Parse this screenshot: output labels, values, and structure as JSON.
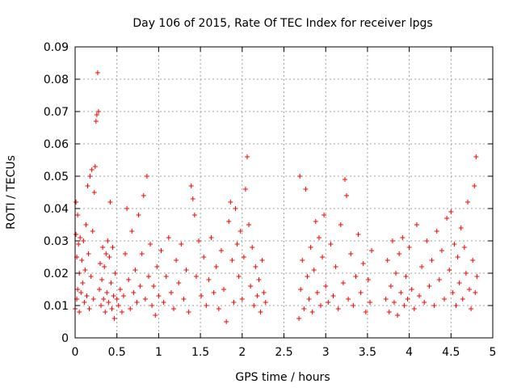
{
  "chart_data": {
    "type": "scatter",
    "title": "Day 106 of 2015, Rate Of TEC Index for receiver lpgs",
    "xlabel": "GPS time / hours",
    "ylabel": "ROTI / TECUs",
    "xlim": [
      0,
      5
    ],
    "ylim": [
      0,
      0.09
    ],
    "x_ticks": [
      "0",
      "0.5",
      "1",
      "1.5",
      "2",
      "2.5",
      "3",
      "3.5",
      "4",
      "4.5",
      "5"
    ],
    "y_ticks": [
      "0",
      "0.01",
      "0.02",
      "0.03",
      "0.04",
      "0.05",
      "0.06",
      "0.07",
      "0.08",
      "0.09"
    ],
    "grid": true,
    "marker": "plus",
    "color": "#ff0000",
    "series": [
      {
        "name": "ROTI",
        "points": [
          [
            0.0,
            0.009
          ],
          [
            0.01,
            0.032
          ],
          [
            0.01,
            0.042
          ],
          [
            0.02,
            0.012
          ],
          [
            0.02,
            0.025
          ],
          [
            0.03,
            0.038
          ],
          [
            0.03,
            0.015
          ],
          [
            0.04,
            0.029
          ],
          [
            0.05,
            0.008
          ],
          [
            0.05,
            0.02
          ],
          [
            0.06,
            0.031
          ],
          [
            0.07,
            0.014
          ],
          [
            0.08,
            0.024
          ],
          [
            0.09,
            0.017
          ],
          [
            0.1,
            0.03
          ],
          [
            0.11,
            0.011
          ],
          [
            0.12,
            0.021
          ],
          [
            0.13,
            0.035
          ],
          [
            0.14,
            0.013
          ],
          [
            0.15,
            0.047
          ],
          [
            0.16,
            0.026
          ],
          [
            0.17,
            0.009
          ],
          [
            0.18,
            0.05
          ],
          [
            0.19,
            0.019
          ],
          [
            0.2,
            0.052
          ],
          [
            0.21,
            0.033
          ],
          [
            0.22,
            0.012
          ],
          [
            0.23,
            0.045
          ],
          [
            0.24,
            0.053
          ],
          [
            0.25,
            0.067
          ],
          [
            0.26,
            0.069
          ],
          [
            0.27,
            0.082
          ],
          [
            0.28,
            0.07
          ],
          [
            0.29,
            0.015
          ],
          [
            0.3,
            0.023
          ],
          [
            0.31,
            0.01
          ],
          [
            0.32,
            0.018
          ],
          [
            0.33,
            0.028
          ],
          [
            0.34,
            0.012
          ],
          [
            0.35,
            0.022
          ],
          [
            0.36,
            0.008
          ],
          [
            0.37,
            0.026
          ],
          [
            0.38,
            0.014
          ],
          [
            0.39,
            0.03
          ],
          [
            0.4,
            0.011
          ],
          [
            0.41,
            0.025
          ],
          [
            0.42,
            0.042
          ],
          [
            0.43,
            0.017
          ],
          [
            0.44,
            0.009
          ],
          [
            0.45,
            0.028
          ],
          [
            0.46,
            0.013
          ],
          [
            0.47,
            0.006
          ],
          [
            0.48,
            0.02
          ],
          [
            0.5,
            0.012
          ],
          [
            0.52,
            0.01
          ],
          [
            0.54,
            0.015
          ],
          [
            0.56,
            0.008
          ],
          [
            0.58,
            0.013
          ],
          [
            0.6,
            0.026
          ],
          [
            0.62,
            0.04
          ],
          [
            0.64,
            0.018
          ],
          [
            0.66,
            0.009
          ],
          [
            0.68,
            0.033
          ],
          [
            0.7,
            0.014
          ],
          [
            0.72,
            0.021
          ],
          [
            0.74,
            0.011
          ],
          [
            0.76,
            0.038
          ],
          [
            0.78,
            0.016
          ],
          [
            0.8,
            0.026
          ],
          [
            0.82,
            0.044
          ],
          [
            0.84,
            0.012
          ],
          [
            0.86,
            0.05
          ],
          [
            0.88,
            0.019
          ],
          [
            0.9,
            0.029
          ],
          [
            0.92,
            0.01
          ],
          [
            0.94,
            0.016
          ],
          [
            0.96,
            0.007
          ],
          [
            0.98,
            0.022
          ],
          [
            1.0,
            0.013
          ],
          [
            1.03,
            0.027
          ],
          [
            1.06,
            0.011
          ],
          [
            1.09,
            0.019
          ],
          [
            1.12,
            0.031
          ],
          [
            1.15,
            0.014
          ],
          [
            1.18,
            0.009
          ],
          [
            1.21,
            0.024
          ],
          [
            1.24,
            0.017
          ],
          [
            1.27,
            0.029
          ],
          [
            1.3,
            0.012
          ],
          [
            1.33,
            0.021
          ],
          [
            1.36,
            0.008
          ],
          [
            1.39,
            0.047
          ],
          [
            1.41,
            0.043
          ],
          [
            1.43,
            0.038
          ],
          [
            1.45,
            0.019
          ],
          [
            1.48,
            0.03
          ],
          [
            1.51,
            0.013
          ],
          [
            1.54,
            0.025
          ],
          [
            1.57,
            0.01
          ],
          [
            1.6,
            0.018
          ],
          [
            1.63,
            0.031
          ],
          [
            1.66,
            0.014
          ],
          [
            1.69,
            0.022
          ],
          [
            1.72,
            0.009
          ],
          [
            1.75,
            0.027
          ],
          [
            1.78,
            0.015
          ],
          [
            1.81,
            0.005
          ],
          [
            1.84,
            0.036
          ],
          [
            1.86,
            0.042
          ],
          [
            1.88,
            0.024
          ],
          [
            1.9,
            0.011
          ],
          [
            1.92,
            0.04
          ],
          [
            1.94,
            0.029
          ],
          [
            1.96,
            0.019
          ],
          [
            1.98,
            0.033
          ],
          [
            2.0,
            0.012
          ],
          [
            2.02,
            0.025
          ],
          [
            2.04,
            0.046
          ],
          [
            2.06,
            0.056
          ],
          [
            2.08,
            0.035
          ],
          [
            2.1,
            0.016
          ],
          [
            2.12,
            0.028
          ],
          [
            2.14,
            0.01
          ],
          [
            2.16,
            0.022
          ],
          [
            2.18,
            0.013
          ],
          [
            2.2,
            0.018
          ],
          [
            2.22,
            0.008
          ],
          [
            2.24,
            0.024
          ],
          [
            2.26,
            0.014
          ],
          [
            2.28,
            0.011
          ],
          [
            2.68,
            0.006
          ],
          [
            2.69,
            0.05
          ],
          [
            2.7,
            0.015
          ],
          [
            2.72,
            0.024
          ],
          [
            2.74,
            0.009
          ],
          [
            2.76,
            0.046
          ],
          [
            2.78,
            0.019
          ],
          [
            2.8,
            0.012
          ],
          [
            2.82,
            0.028
          ],
          [
            2.84,
            0.008
          ],
          [
            2.86,
            0.021
          ],
          [
            2.88,
            0.036
          ],
          [
            2.9,
            0.014
          ],
          [
            2.92,
            0.031
          ],
          [
            2.94,
            0.01
          ],
          [
            2.96,
            0.025
          ],
          [
            2.98,
            0.038
          ],
          [
            3.0,
            0.016
          ],
          [
            3.03,
            0.011
          ],
          [
            3.06,
            0.029
          ],
          [
            3.09,
            0.013
          ],
          [
            3.12,
            0.022
          ],
          [
            3.15,
            0.009
          ],
          [
            3.18,
            0.035
          ],
          [
            3.21,
            0.017
          ],
          [
            3.23,
            0.049
          ],
          [
            3.25,
            0.044
          ],
          [
            3.27,
            0.012
          ],
          [
            3.3,
            0.026
          ],
          [
            3.33,
            0.01
          ],
          [
            3.36,
            0.019
          ],
          [
            3.39,
            0.032
          ],
          [
            3.42,
            0.014
          ],
          [
            3.45,
            0.023
          ],
          [
            3.48,
            0.008
          ],
          [
            3.51,
            0.018
          ],
          [
            3.53,
            0.011
          ],
          [
            3.55,
            0.027
          ],
          [
            3.72,
            0.012
          ],
          [
            3.74,
            0.024
          ],
          [
            3.76,
            0.008
          ],
          [
            3.78,
            0.016
          ],
          [
            3.8,
            0.03
          ],
          [
            3.82,
            0.011
          ],
          [
            3.84,
            0.02
          ],
          [
            3.86,
            0.007
          ],
          [
            3.88,
            0.026
          ],
          [
            3.9,
            0.014
          ],
          [
            3.92,
            0.031
          ],
          [
            3.94,
            0.01
          ],
          [
            3.96,
            0.019
          ],
          [
            3.98,
            0.012
          ],
          [
            4.0,
            0.028
          ],
          [
            4.03,
            0.015
          ],
          [
            4.06,
            0.009
          ],
          [
            4.09,
            0.035
          ],
          [
            4.12,
            0.013
          ],
          [
            4.15,
            0.022
          ],
          [
            4.18,
            0.011
          ],
          [
            4.21,
            0.03
          ],
          [
            4.24,
            0.016
          ],
          [
            4.27,
            0.024
          ],
          [
            4.3,
            0.01
          ],
          [
            4.33,
            0.033
          ],
          [
            4.36,
            0.018
          ],
          [
            4.39,
            0.027
          ],
          [
            4.42,
            0.012
          ],
          [
            4.45,
            0.037
          ],
          [
            4.48,
            0.021
          ],
          [
            4.5,
            0.039
          ],
          [
            4.52,
            0.014
          ],
          [
            4.54,
            0.029
          ],
          [
            4.56,
            0.01
          ],
          [
            4.58,
            0.025
          ],
          [
            4.6,
            0.017
          ],
          [
            4.62,
            0.034
          ],
          [
            4.64,
            0.012
          ],
          [
            4.66,
            0.028
          ],
          [
            4.68,
            0.02
          ],
          [
            4.7,
            0.042
          ],
          [
            4.72,
            0.015
          ],
          [
            4.74,
            0.009
          ],
          [
            4.76,
            0.024
          ],
          [
            4.78,
            0.047
          ],
          [
            4.79,
            0.014
          ],
          [
            4.8,
            0.056
          ],
          [
            4.81,
            0.019
          ]
        ]
      }
    ]
  }
}
